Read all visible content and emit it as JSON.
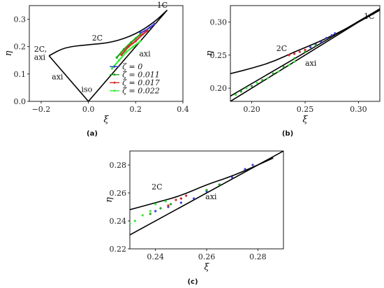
{
  "chart_data": [
    {
      "panel_label": "(a)",
      "type": "line",
      "xlabel": "ξ",
      "ylabel": "η",
      "xlim": [
        -0.25,
        0.4
      ],
      "ylim": [
        0.0,
        0.35
      ],
      "xticks": [
        "−0.2",
        "0.0",
        "0.2",
        "0.4"
      ],
      "yticks": [
        "0.0",
        "0.1",
        "0.2",
        "0.3"
      ],
      "boundary_lines": {
        "axi_left": [
          [
            0.0,
            0.0
          ],
          [
            -0.1667,
            0.1667
          ]
        ],
        "axi_right": [
          [
            0.0,
            0.0
          ],
          [
            0.3333,
            0.3333
          ]
        ],
        "two_c": [
          [
            -0.1667,
            0.1667
          ],
          [
            -0.1,
            0.198
          ],
          [
            0.0,
            0.207
          ],
          [
            0.1,
            0.215
          ],
          [
            0.2,
            0.245
          ],
          [
            0.28,
            0.29
          ],
          [
            0.3333,
            0.3333
          ]
        ]
      },
      "annotations": [
        "1C",
        "2C",
        "2C,",
        "axi",
        "axi",
        "axi",
        "iso"
      ],
      "legend": {
        "placement": "lower-right",
        "entries": [
          {
            "label": "ζ = 0",
            "color": "#3b3bd8"
          },
          {
            "label": "ζ = 0.011",
            "color": "#1aa61a"
          },
          {
            "label": "ζ = 0.017",
            "color": "#e02424"
          },
          {
            "label": "ζ = 0.022",
            "color": "#33ee33"
          }
        ]
      },
      "series": [
        {
          "color": "#3b3bd8",
          "points": [
            [
              0.22,
              0.25
            ],
            [
              0.24,
              0.258
            ],
            [
              0.26,
              0.27
            ],
            [
              0.28,
              0.283
            ]
          ]
        },
        {
          "color": "#1aa61a",
          "points": [
            [
              0.12,
              0.16
            ],
            [
              0.15,
              0.19
            ],
            [
              0.18,
              0.215
            ],
            [
              0.2,
              0.23
            ],
            [
              0.22,
              0.245
            ]
          ]
        },
        {
          "color": "#e02424",
          "points": [
            [
              0.14,
              0.17
            ],
            [
              0.17,
              0.2
            ],
            [
              0.2,
              0.22
            ],
            [
              0.23,
              0.245
            ],
            [
              0.25,
              0.258
            ]
          ]
        },
        {
          "color": "#33ee33",
          "points": [
            [
              0.1,
              0.12
            ],
            [
              0.13,
              0.15
            ],
            [
              0.16,
              0.18
            ],
            [
              0.19,
              0.2
            ],
            [
              0.22,
              0.22
            ]
          ]
        }
      ]
    },
    {
      "panel_label": "(b)",
      "type": "scatter",
      "xlabel": "ξ",
      "ylabel": "η",
      "xlim": [
        0.18,
        0.32
      ],
      "ylim": [
        0.18,
        0.325
      ],
      "xticks": [
        "0.20",
        "0.25",
        "0.30"
      ],
      "yticks": [
        "0.20",
        "0.25",
        "0.30"
      ],
      "boundary_lines": {
        "axi_upper": [
          [
            0.18,
            0.18
          ],
          [
            0.3333,
            0.3333
          ]
        ],
        "axi_lower": [
          [
            0.18,
            0.188
          ],
          [
            0.32,
            0.32
          ]
        ],
        "two_c": [
          [
            0.18,
            0.222
          ],
          [
            0.2,
            0.23
          ],
          [
            0.22,
            0.24
          ],
          [
            0.24,
            0.255
          ],
          [
            0.26,
            0.268
          ],
          [
            0.28,
            0.283
          ],
          [
            0.3,
            0.3
          ],
          [
            0.32,
            0.318
          ]
        ]
      },
      "annotations": [
        "1C",
        "2C",
        "axi"
      ],
      "series": [
        {
          "color": "#3b3bd8",
          "points": [
            [
              0.255,
              0.262
            ],
            [
              0.26,
              0.266
            ],
            [
              0.265,
              0.27
            ],
            [
              0.27,
              0.276
            ],
            [
              0.275,
              0.28
            ],
            [
              0.278,
              0.283
            ]
          ]
        },
        {
          "color": "#1aa61a",
          "points": [
            [
              0.19,
              0.195
            ],
            [
              0.2,
              0.203
            ],
            [
              0.21,
              0.212
            ],
            [
              0.22,
              0.222
            ],
            [
              0.23,
              0.232
            ],
            [
              0.24,
              0.245
            ],
            [
              0.25,
              0.255
            ],
            [
              0.26,
              0.265
            ]
          ]
        },
        {
          "color": "#e02424",
          "points": [
            [
              0.235,
              0.25
            ],
            [
              0.24,
              0.252
            ],
            [
              0.245,
              0.255
            ],
            [
              0.25,
              0.258
            ]
          ]
        },
        {
          "color": "#33ee33",
          "points": [
            [
              0.185,
              0.19
            ],
            [
              0.195,
              0.2
            ],
            [
              0.205,
              0.208
            ],
            [
              0.215,
              0.215
            ],
            [
              0.225,
              0.225
            ],
            [
              0.235,
              0.235
            ],
            [
              0.24,
              0.24
            ]
          ]
        }
      ]
    },
    {
      "panel_label": "(c)",
      "type": "scatter",
      "xlabel": "ξ",
      "ylabel": "η",
      "xlim": [
        0.23,
        0.29
      ],
      "ylim": [
        0.22,
        0.29
      ],
      "xticks": [
        "0.24",
        "0.26",
        "0.28"
      ],
      "yticks": [
        "0.22",
        "0.24",
        "0.26",
        "0.28"
      ],
      "boundary_lines": {
        "axi_lower": [
          [
            0.23,
            0.23
          ],
          [
            0.29,
            0.29
          ]
        ],
        "two_c": [
          [
            0.23,
            0.248
          ],
          [
            0.24,
            0.253
          ],
          [
            0.25,
            0.258
          ],
          [
            0.26,
            0.266
          ],
          [
            0.27,
            0.272
          ],
          [
            0.28,
            0.28
          ],
          [
            0.286,
            0.285
          ]
        ]
      },
      "annotations": [
        "2C",
        "axi"
      ],
      "series": [
        {
          "color": "#3b3bd8",
          "points": [
            [
              0.24,
              0.247
            ],
            [
              0.245,
              0.25
            ],
            [
              0.25,
              0.253
            ],
            [
              0.255,
              0.256
            ],
            [
              0.26,
              0.261
            ],
            [
              0.265,
              0.266
            ],
            [
              0.27,
              0.271
            ],
            [
              0.275,
              0.277
            ],
            [
              0.278,
              0.28
            ]
          ]
        },
        {
          "color": "#1aa61a",
          "points": [
            [
              0.238,
              0.245
            ],
            [
              0.242,
              0.249
            ],
            [
              0.246,
              0.252
            ],
            [
              0.25,
              0.256
            ],
            [
              0.26,
              0.262
            ],
            [
              0.265,
              0.266
            ]
          ]
        },
        {
          "color": "#e02424",
          "points": [
            [
              0.245,
              0.251
            ],
            [
              0.248,
              0.255
            ],
            [
              0.25,
              0.256
            ],
            [
              0.252,
              0.258
            ]
          ]
        },
        {
          "color": "#33ee33",
          "points": [
            [
              0.23,
              0.238
            ],
            [
              0.232,
              0.24
            ],
            [
              0.235,
              0.244
            ],
            [
              0.238,
              0.247
            ],
            [
              0.24,
              0.252
            ],
            [
              0.244,
              0.254
            ]
          ]
        }
      ]
    }
  ]
}
